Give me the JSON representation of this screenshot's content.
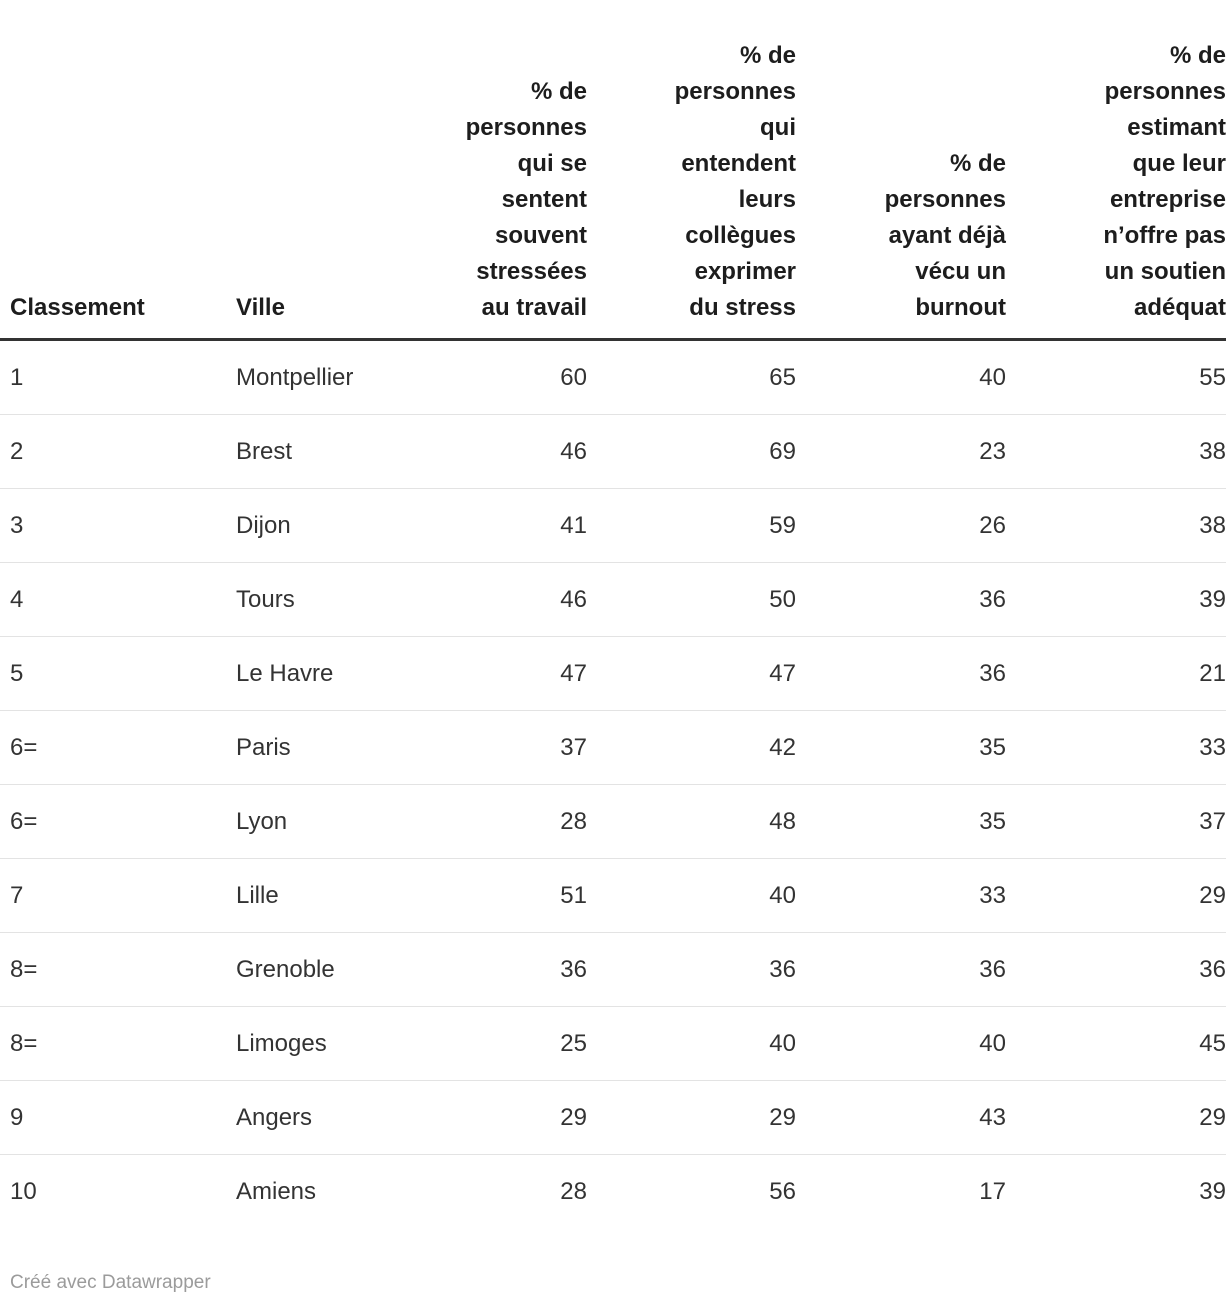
{
  "table": {
    "columns": [
      {
        "id": "classement",
        "label": "Classement",
        "align": "left"
      },
      {
        "id": "ville",
        "label": "Ville",
        "align": "left"
      },
      {
        "id": "stress-travail",
        "label": "% de\npersonnes\nqui se\nsentent\nsouvent\nstressées\nau travail",
        "align": "right"
      },
      {
        "id": "collegues-stress",
        "label": "% de\npersonnes\nqui\nentendent\nleurs\ncollègues\nexprimer\ndu stress",
        "align": "right"
      },
      {
        "id": "burnout",
        "label": "% de\npersonnes\nayant déjà\nvécu un\nburnout",
        "align": "right"
      },
      {
        "id": "soutien-inadequat",
        "label": "% de\npersonnes\nestimant\nque leur\nentreprise\nn’offre pas\nun soutien\nadéquat",
        "align": "right"
      }
    ],
    "rows": [
      [
        "1",
        "Montpellier",
        "60",
        "65",
        "40",
        "55"
      ],
      [
        "2",
        "Brest",
        "46",
        "69",
        "23",
        "38"
      ],
      [
        "3",
        "Dijon",
        "41",
        "59",
        "26",
        "38"
      ],
      [
        "4",
        "Tours",
        "46",
        "50",
        "36",
        "39"
      ],
      [
        "5",
        "Le Havre",
        "47",
        "47",
        "36",
        "21"
      ],
      [
        "6=",
        "Paris",
        "37",
        "42",
        "35",
        "33"
      ],
      [
        "6=",
        "Lyon",
        "28",
        "48",
        "35",
        "37"
      ],
      [
        "7",
        "Lille",
        "51",
        "40",
        "33",
        "29"
      ],
      [
        "8=",
        "Grenoble",
        "36",
        "36",
        "36",
        "36"
      ],
      [
        "8=",
        "Limoges",
        "25",
        "40",
        "40",
        "45"
      ],
      [
        "9",
        "Angers",
        "29",
        "29",
        "43",
        "29"
      ],
      [
        "10",
        "Amiens",
        "28",
        "56",
        "17",
        "39"
      ]
    ]
  },
  "footer": {
    "credit": "Créé avec Datawrapper"
  },
  "chart_data": {
    "type": "table",
    "title": "",
    "columns": [
      "Classement",
      "Ville",
      "% de personnes qui se sentent souvent stressées au travail",
      "% de personnes qui entendent leurs collègues exprimer du stress",
      "% de personnes ayant déjà vécu un burnout",
      "% de personnes estimant que leur entreprise n’offre pas un soutien adéquat"
    ],
    "rows": [
      [
        "1",
        "Montpellier",
        60,
        65,
        40,
        55
      ],
      [
        "2",
        "Brest",
        46,
        69,
        23,
        38
      ],
      [
        "3",
        "Dijon",
        41,
        59,
        26,
        38
      ],
      [
        "4",
        "Tours",
        46,
        50,
        36,
        39
      ],
      [
        "5",
        "Le Havre",
        47,
        47,
        36,
        21
      ],
      [
        "6=",
        "Paris",
        37,
        42,
        35,
        33
      ],
      [
        "6=",
        "Lyon",
        28,
        48,
        35,
        37
      ],
      [
        "7",
        "Lille",
        51,
        40,
        33,
        29
      ],
      [
        "8=",
        "Grenoble",
        36,
        36,
        36,
        36
      ],
      [
        "8=",
        "Limoges",
        25,
        40,
        40,
        45
      ],
      [
        "9",
        "Angers",
        29,
        29,
        43,
        29
      ],
      [
        "10",
        "Amiens",
        28,
        56,
        17,
        39
      ]
    ]
  },
  "colors": {
    "header_text": "#1d1d1d",
    "body_text": "#333333",
    "header_rule": "#333333",
    "row_separator": "#e3e3e3",
    "credit_text": "#9b9b9b",
    "background": "#ffffff"
  }
}
